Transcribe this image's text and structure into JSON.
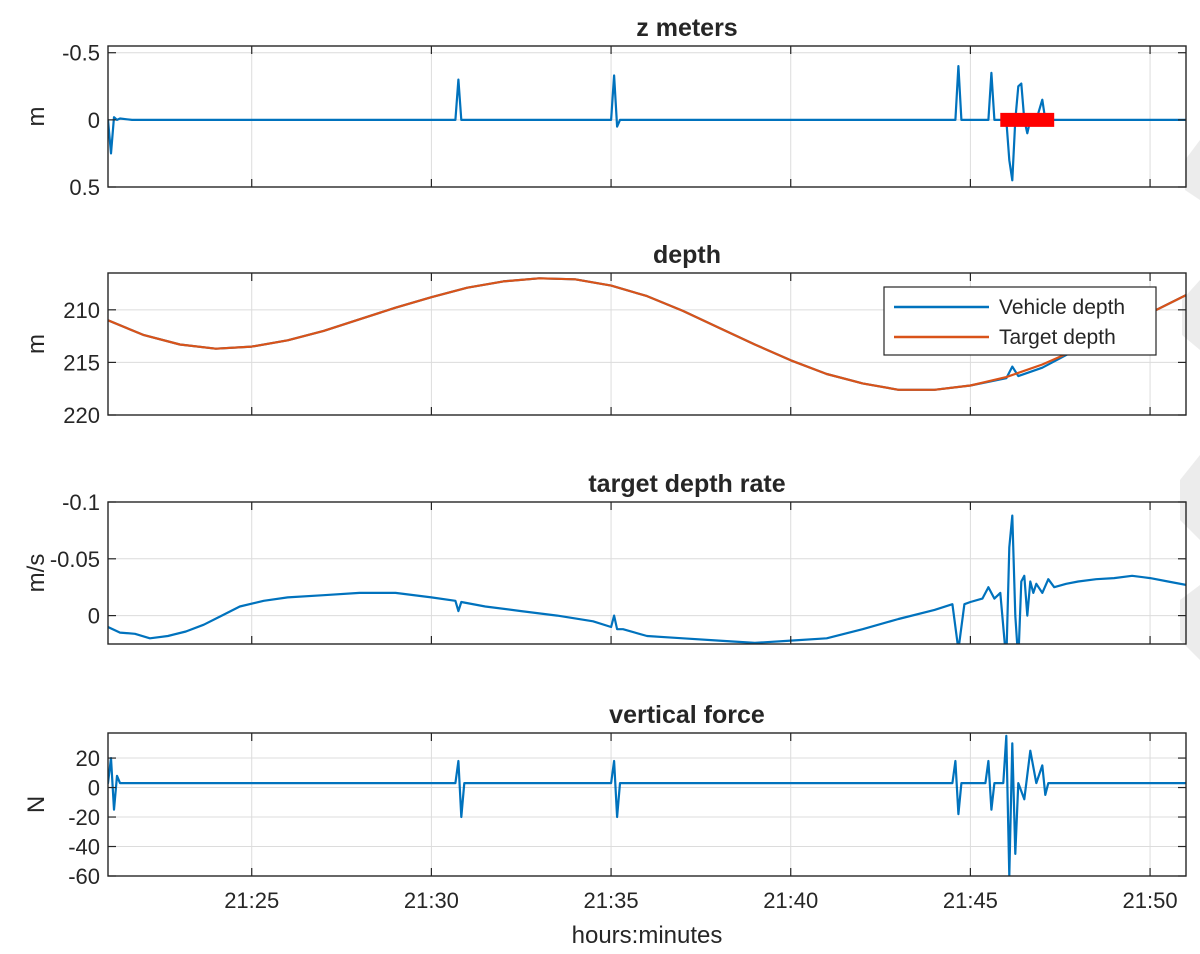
{
  "chart_data": [
    {
      "type": "line",
      "title": "z meters",
      "ylabel": "m",
      "xlabel": "",
      "ylim": [
        -0.55,
        0.5
      ],
      "y_reversed": true,
      "yticks": [
        -0.5,
        0,
        0.5
      ],
      "ytick_labels": [
        "-0.5",
        "0",
        "0.5"
      ],
      "xlim": [
        "21:21:00",
        "21:51:00"
      ],
      "xticks": [
        "21:25",
        "21:30",
        "21:35",
        "21:40",
        "21:45",
        "21:50"
      ],
      "xtick_labels": [
        "",
        "",
        "",
        "",
        "",
        ""
      ],
      "grid": true,
      "series": [
        {
          "name": "",
          "color": "#0072BD",
          "x": [
            "21:21:00",
            "21:21:05",
            "21:21:10",
            "21:21:15",
            "21:21:20",
            "21:21:40",
            "21:22:30",
            "21:25:00",
            "21:28:00",
            "21:30:40",
            "21:30:45",
            "21:30:50",
            "21:30:55",
            "21:31:10",
            "21:33:00",
            "21:35:00",
            "21:35:05",
            "21:35:10",
            "21:35:15",
            "21:35:30",
            "21:38:00",
            "21:41:00",
            "21:44:00",
            "21:44:35",
            "21:44:40",
            "21:44:45",
            "21:44:55",
            "21:45:30",
            "21:45:35",
            "21:45:40",
            "21:45:50",
            "21:46:00",
            "21:46:05",
            "21:46:10",
            "21:46:15",
            "21:46:20",
            "21:46:25",
            "21:46:30",
            "21:46:35",
            "21:46:40",
            "21:46:50",
            "21:47:00",
            "21:47:05",
            "21:47:10",
            "21:47:20",
            "21:48:00",
            "21:50:00",
            "21:51:00"
          ],
          "y": [
            0.0,
            0.25,
            -0.02,
            0.0,
            -0.01,
            0.0,
            0.0,
            0.0,
            0.0,
            0.0,
            -0.3,
            0.0,
            0.0,
            0.0,
            0.0,
            0.0,
            -0.33,
            0.05,
            0.0,
            0.0,
            0.0,
            0.0,
            0.0,
            0.0,
            -0.4,
            0.0,
            0.0,
            0.0,
            -0.35,
            0.0,
            0.0,
            0.0,
            0.3,
            0.45,
            0.0,
            -0.25,
            -0.27,
            0.0,
            0.1,
            0.0,
            0.0,
            -0.15,
            0.0,
            0.0,
            0.0,
            0.0,
            0.0,
            0.0
          ]
        },
        {
          "name": "",
          "color": "#FF0000",
          "x": [
            "21:45:50",
            "21:47:20"
          ],
          "y": [
            0.0,
            0.0
          ]
        }
      ]
    },
    {
      "type": "line",
      "title": "depth",
      "ylabel": "m",
      "xlabel": "",
      "ylim": [
        206.5,
        220
      ],
      "y_reversed": true,
      "yticks": [
        210,
        215,
        220
      ],
      "ytick_labels": [
        "210",
        "215",
        "220"
      ],
      "xlim": [
        "21:21:00",
        "21:51:00"
      ],
      "xticks": [
        "21:25",
        "21:30",
        "21:35",
        "21:40",
        "21:45",
        "21:50"
      ],
      "xtick_labels": [
        "",
        "",
        "",
        "",
        "",
        ""
      ],
      "grid": true,
      "legend": "top-right",
      "series": [
        {
          "name": "Vehicle depth",
          "color": "#0072BD",
          "x": [
            "21:21:00",
            "21:22:00",
            "21:23:00",
            "21:24:00",
            "21:25:00",
            "21:26:00",
            "21:27:00",
            "21:28:00",
            "21:29:00",
            "21:30:00",
            "21:31:00",
            "21:32:00",
            "21:33:00",
            "21:34:00",
            "21:35:00",
            "21:36:00",
            "21:37:00",
            "21:38:00",
            "21:39:00",
            "21:40:00",
            "21:41:00",
            "21:42:00",
            "21:43:00",
            "21:44:00",
            "21:45:00",
            "21:46:00",
            "21:46:10",
            "21:46:20",
            "21:47:00",
            "21:48:00",
            "21:49:00",
            "21:50:00",
            "21:51:00"
          ],
          "y": [
            211.0,
            212.4,
            213.3,
            213.7,
            213.5,
            212.9,
            212.0,
            210.9,
            209.8,
            208.8,
            207.9,
            207.3,
            207.0,
            207.1,
            207.7,
            208.7,
            210.1,
            211.7,
            213.3,
            214.8,
            216.1,
            217.0,
            217.6,
            217.6,
            217.2,
            216.5,
            215.4,
            216.3,
            215.5,
            213.7,
            212.0,
            210.3,
            208.6
          ]
        },
        {
          "name": "Target depth",
          "color": "#D95319",
          "x": [
            "21:21:00",
            "21:22:00",
            "21:23:00",
            "21:24:00",
            "21:25:00",
            "21:26:00",
            "21:27:00",
            "21:28:00",
            "21:29:00",
            "21:30:00",
            "21:31:00",
            "21:32:00",
            "21:33:00",
            "21:34:00",
            "21:35:00",
            "21:36:00",
            "21:37:00",
            "21:38:00",
            "21:39:00",
            "21:40:00",
            "21:41:00",
            "21:42:00",
            "21:43:00",
            "21:44:00",
            "21:45:00",
            "21:46:00",
            "21:47:00",
            "21:48:00",
            "21:49:00",
            "21:50:00",
            "21:51:00"
          ],
          "y": [
            211.0,
            212.4,
            213.3,
            213.7,
            213.5,
            212.9,
            212.0,
            210.9,
            209.8,
            208.8,
            207.9,
            207.3,
            207.0,
            207.1,
            207.7,
            208.7,
            210.1,
            211.7,
            213.3,
            214.8,
            216.1,
            217.0,
            217.6,
            217.6,
            217.2,
            216.4,
            215.2,
            213.7,
            212.0,
            210.3,
            208.6
          ]
        }
      ]
    },
    {
      "type": "line",
      "title": "target depth rate",
      "ylabel": "m/s",
      "xlabel": "",
      "ylim": [
        -0.1,
        0.025
      ],
      "y_reversed": true,
      "yticks": [
        -0.1,
        -0.05,
        0
      ],
      "ytick_labels": [
        "-0.1",
        "-0.05",
        "0"
      ],
      "xlim": [
        "21:21:00",
        "21:51:00"
      ],
      "xticks": [
        "21:25",
        "21:30",
        "21:35",
        "21:40",
        "21:45",
        "21:50"
      ],
      "xtick_labels": [
        "",
        "",
        "",
        "",
        "",
        ""
      ],
      "grid": true,
      "series": [
        {
          "name": "",
          "color": "#0072BD",
          "x": [
            "21:21:00",
            "21:21:20",
            "21:21:45",
            "21:22:10",
            "21:22:40",
            "21:23:10",
            "21:23:40",
            "21:24:10",
            "21:24:40",
            "21:25:20",
            "21:26:00",
            "21:27:00",
            "21:28:00",
            "21:29:00",
            "21:30:00",
            "21:30:40",
            "21:30:45",
            "21:30:50",
            "21:31:30",
            "21:32:30",
            "21:33:30",
            "21:34:30",
            "21:35:00",
            "21:35:05",
            "21:35:10",
            "21:35:20",
            "21:36:00",
            "21:37:00",
            "21:38:00",
            "21:39:00",
            "21:40:00",
            "21:41:00",
            "21:42:00",
            "21:43:00",
            "21:44:00",
            "21:44:30",
            "21:44:40",
            "21:44:50",
            "21:45:00",
            "21:45:20",
            "21:45:30",
            "21:45:40",
            "21:45:50",
            "21:46:00",
            "21:46:05",
            "21:46:10",
            "21:46:15",
            "21:46:20",
            "21:46:25",
            "21:46:30",
            "21:46:35",
            "21:46:40",
            "21:46:45",
            "21:46:50",
            "21:47:00",
            "21:47:10",
            "21:47:20",
            "21:47:40",
            "21:48:00",
            "21:48:30",
            "21:49:00",
            "21:49:30",
            "21:50:00",
            "21:50:30",
            "21:51:00"
          ],
          "y": [
            0.01,
            0.015,
            0.016,
            0.02,
            0.018,
            0.014,
            0.008,
            0.0,
            -0.008,
            -0.013,
            -0.016,
            -0.018,
            -0.02,
            -0.02,
            -0.016,
            -0.013,
            -0.004,
            -0.012,
            -0.008,
            -0.004,
            0.0,
            0.005,
            0.01,
            0.0,
            0.012,
            0.012,
            0.018,
            0.02,
            0.022,
            0.024,
            0.022,
            0.02,
            0.012,
            0.003,
            -0.005,
            -0.01,
            0.03,
            -0.01,
            -0.012,
            -0.015,
            -0.025,
            -0.015,
            -0.02,
            0.04,
            -0.06,
            -0.088,
            0.0,
            0.04,
            -0.03,
            -0.035,
            0.0,
            -0.03,
            -0.02,
            -0.028,
            -0.02,
            -0.032,
            -0.025,
            -0.028,
            -0.03,
            -0.032,
            -0.033,
            -0.035,
            -0.033,
            -0.03,
            -0.027
          ]
        }
      ]
    },
    {
      "type": "line",
      "title": "vertical force",
      "ylabel": "N",
      "xlabel": "hours:minutes",
      "ylim": [
        -60,
        37
      ],
      "yticks": [
        -60,
        -40,
        -20,
        0,
        20
      ],
      "ytick_labels": [
        "-60",
        "-40",
        "-20",
        "0",
        "20"
      ],
      "xlim": [
        "21:21:00",
        "21:51:00"
      ],
      "xticks": [
        "21:25",
        "21:30",
        "21:35",
        "21:40",
        "21:45",
        "21:50"
      ],
      "xtick_labels": [
        "21:25",
        "21:30",
        "21:35",
        "21:40",
        "21:45",
        "21:50"
      ],
      "grid": true,
      "series": [
        {
          "name": "",
          "color": "#0072BD",
          "x": [
            "21:21:00",
            "21:21:05",
            "21:21:10",
            "21:21:15",
            "21:21:20",
            "21:22:00",
            "21:25:00",
            "21:28:00",
            "21:30:40",
            "21:30:45",
            "21:30:50",
            "21:30:55",
            "21:31:30",
            "21:35:00",
            "21:35:05",
            "21:35:10",
            "21:35:15",
            "21:36:00",
            "21:40:00",
            "21:44:30",
            "21:44:35",
            "21:44:40",
            "21:44:45",
            "21:45:25",
            "21:45:30",
            "21:45:35",
            "21:45:40",
            "21:45:55",
            "21:46:00",
            "21:46:05",
            "21:46:10",
            "21:46:15",
            "21:46:20",
            "21:46:30",
            "21:46:40",
            "21:46:50",
            "21:47:00",
            "21:47:05",
            "21:47:10",
            "21:48:00",
            "21:50:00",
            "21:51:00"
          ],
          "y": [
            3,
            20,
            -15,
            8,
            3,
            3,
            3,
            3,
            3,
            18,
            -20,
            3,
            3,
            3,
            18,
            -20,
            3,
            3,
            3,
            3,
            18,
            -18,
            3,
            3,
            18,
            -15,
            3,
            3,
            35,
            -60,
            30,
            -45,
            3,
            -8,
            25,
            3,
            15,
            -5,
            3,
            3,
            3,
            3
          ]
        }
      ]
    }
  ]
}
